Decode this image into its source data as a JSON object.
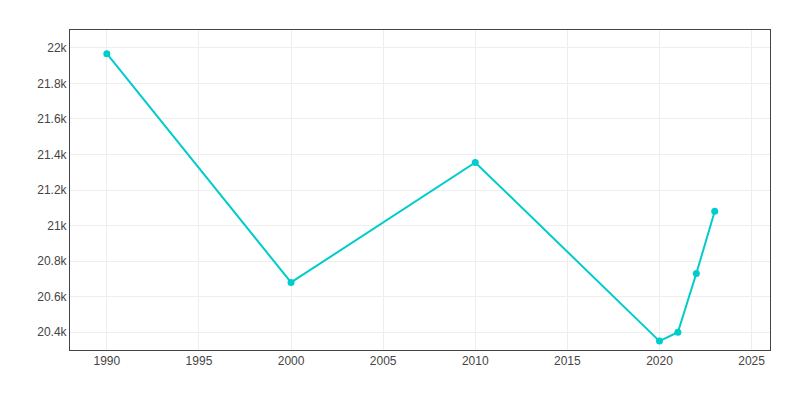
{
  "chart_data": {
    "type": "line",
    "x": [
      1990,
      2000,
      2010,
      2020,
      2021,
      2022,
      2023
    ],
    "values": [
      21967,
      20680,
      21355,
      20350,
      20400,
      20730,
      21080
    ],
    "color": "#00CCCC",
    "marker": "circle",
    "xlim": [
      1988,
      2026
    ],
    "xticks": [
      1990,
      1995,
      2000,
      2005,
      2010,
      2015,
      2020,
      2025
    ],
    "ylim": [
      20300,
      22100
    ],
    "yticks": [
      {
        "value": 20400,
        "label": "20.4k"
      },
      {
        "value": 20600,
        "label": "20.6k"
      },
      {
        "value": 20800,
        "label": "20.8k"
      },
      {
        "value": 21000,
        "label": "21k"
      },
      {
        "value": 21200,
        "label": "21.2k"
      },
      {
        "value": 21400,
        "label": "21.4k"
      },
      {
        "value": 21600,
        "label": "21.6k"
      },
      {
        "value": 21800,
        "label": "21.8k"
      },
      {
        "value": 22000,
        "label": "22k"
      }
    ],
    "grid": true
  }
}
